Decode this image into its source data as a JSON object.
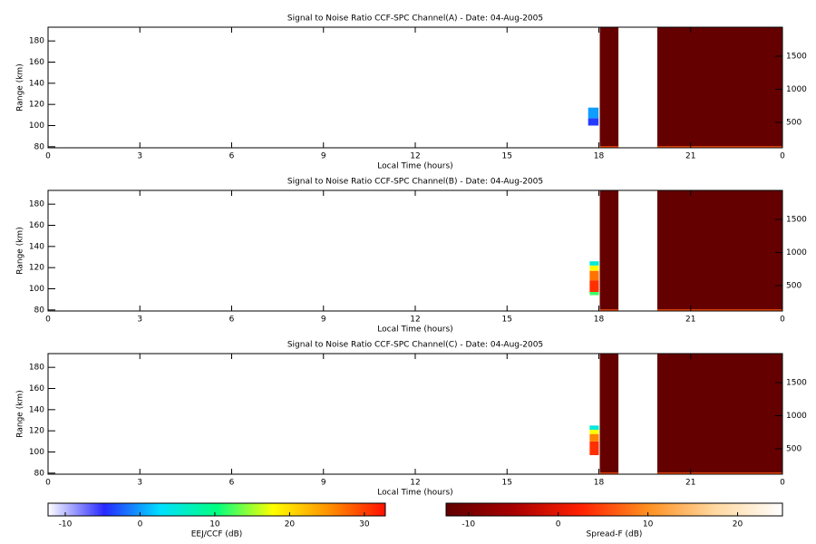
{
  "chart_data": [
    {
      "type": "heatmap",
      "title": "Signal to Noise Ratio CCF-SPC Channel(A) - Date: 04-Aug-2005",
      "xlabel": "Local Time (hours)",
      "ylabel": "Range (km)",
      "xlim": [
        0,
        24
      ],
      "xticks": [
        0,
        3,
        6,
        9,
        12,
        15,
        18,
        21,
        {
          "value": 24,
          "label": "0"
        }
      ],
      "ylim": [
        79,
        193
      ],
      "yticks": [
        80,
        100,
        120,
        140,
        160,
        180
      ],
      "y2lim": [
        116,
        1938
      ],
      "y2ticks": [
        500,
        1000,
        1500
      ],
      "eej_cells": [
        {
          "x": [
            17.65,
            17.99
          ],
          "y": [
            100,
            107
          ],
          "value": -4
        },
        {
          "x": [
            17.65,
            17.99
          ],
          "y": [
            107,
            117
          ],
          "value": 0
        }
      ],
      "spread_f_cells": [
        {
          "x": [
            18.03,
            18.64
          ],
          "y": [
            79,
            193
          ],
          "value": -12
        },
        {
          "x": [
            19.91,
            24
          ],
          "y": [
            79,
            193
          ],
          "value": -12
        },
        {
          "x": [
            18.03,
            18.64
          ],
          "y": [
            79,
            80.5
          ],
          "value": 6
        },
        {
          "x": [
            19.91,
            24
          ],
          "y": [
            79,
            80.5
          ],
          "value": 6
        }
      ]
    },
    {
      "type": "heatmap",
      "title": "Signal to Noise Ratio CCF-SPC Channel(B) - Date: 04-Aug-2005",
      "xlabel": "Local Time (hours)",
      "ylabel": "Range (km)",
      "xlim": [
        0,
        24
      ],
      "xticks": [
        0,
        3,
        6,
        9,
        12,
        15,
        18,
        21,
        {
          "value": 24,
          "label": "0"
        }
      ],
      "ylim": [
        79,
        193
      ],
      "yticks": [
        80,
        100,
        120,
        140,
        160,
        180
      ],
      "y2lim": [
        116,
        1938
      ],
      "y2ticks": [
        500,
        1000,
        1500
      ],
      "eej_cells": [
        {
          "x": [
            17.7,
            18.0
          ],
          "y": [
            94,
            97
          ],
          "value": 12
        },
        {
          "x": [
            17.7,
            18.0
          ],
          "y": [
            97,
            108
          ],
          "value": 31
        },
        {
          "x": [
            17.7,
            18.0
          ],
          "y": [
            108,
            117
          ],
          "value": 27
        },
        {
          "x": [
            17.7,
            18.0
          ],
          "y": [
            117,
            122
          ],
          "value": 18
        },
        {
          "x": [
            17.7,
            18.0
          ],
          "y": [
            122,
            126
          ],
          "value": 5
        }
      ],
      "spread_f_cells": [
        {
          "x": [
            18.03,
            18.64
          ],
          "y": [
            79,
            193
          ],
          "value": -12
        },
        {
          "x": [
            19.91,
            24
          ],
          "y": [
            79,
            193
          ],
          "value": -12
        },
        {
          "x": [
            18.03,
            18.64
          ],
          "y": [
            79,
            80.5
          ],
          "value": 6
        },
        {
          "x": [
            19.91,
            24
          ],
          "y": [
            79,
            80.5
          ],
          "value": 6
        }
      ]
    },
    {
      "type": "heatmap",
      "title": "Signal to Noise Ratio CCF-SPC Channel(C) - Date: 04-Aug-2005",
      "xlabel": "Local Time (hours)",
      "ylabel": "Range (km)",
      "xlim": [
        0,
        24
      ],
      "xticks": [
        0,
        3,
        6,
        9,
        12,
        15,
        18,
        21,
        {
          "value": 24,
          "label": "0"
        }
      ],
      "ylim": [
        79,
        193
      ],
      "yticks": [
        80,
        100,
        120,
        140,
        160,
        180
      ],
      "y2lim": [
        116,
        1938
      ],
      "y2ticks": [
        500,
        1000,
        1500
      ],
      "eej_cells": [
        {
          "x": [
            17.7,
            18.0
          ],
          "y": [
            97,
            110
          ],
          "value": 31
        },
        {
          "x": [
            17.7,
            18.0
          ],
          "y": [
            110,
            117
          ],
          "value": 26
        },
        {
          "x": [
            17.7,
            18.0
          ],
          "y": [
            117,
            121
          ],
          "value": 18
        },
        {
          "x": [
            17.7,
            18.0
          ],
          "y": [
            121,
            125
          ],
          "value": 5
        }
      ],
      "spread_f_cells": [
        {
          "x": [
            18.03,
            18.64
          ],
          "y": [
            79,
            193
          ],
          "value": -12
        },
        {
          "x": [
            19.91,
            24
          ],
          "y": [
            79,
            193
          ],
          "value": -12
        },
        {
          "x": [
            18.03,
            18.64
          ],
          "y": [
            79,
            80.5
          ],
          "value": 6
        },
        {
          "x": [
            19.91,
            24
          ],
          "y": [
            79,
            80.5
          ],
          "value": 6
        }
      ]
    },
    {
      "type": "colorbar",
      "label": "EEJ/CCF (dB)",
      "lim": [
        -12.3,
        32.8
      ],
      "ticks": [
        -10,
        0,
        10,
        20,
        30
      ],
      "colors": [
        "#ffffff",
        "#2828ff",
        "#00e0ff",
        "#00ff80",
        "#ffff00",
        "#ff9000",
        "#ff1000"
      ]
    },
    {
      "type": "colorbar",
      "label": "Spread-F (dB)",
      "lim": [
        -12.5,
        25
      ],
      "ticks": [
        -10,
        0,
        10,
        20
      ],
      "colors": [
        "#600000",
        "#a80000",
        "#ff2000",
        "#ff9020",
        "#ffd8a0",
        "#ffffff"
      ]
    }
  ]
}
